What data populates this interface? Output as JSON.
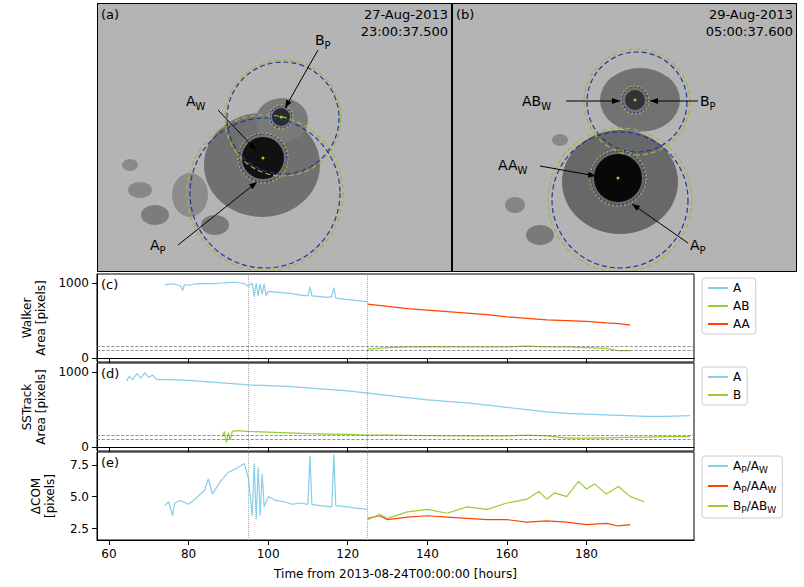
{
  "images": [
    {
      "panel": "(a)",
      "date": "27-Aug-2013",
      "time": "23:00:37.500",
      "labels": [
        [
          "A",
          {
            "sub": "W"
          }
        ],
        [
          "B",
          {
            "sub": "P"
          }
        ],
        [
          "A",
          {
            "sub": "P"
          }
        ]
      ]
    },
    {
      "panel": "(b)",
      "date": "29-Aug-2013",
      "time": "05:00:37.600",
      "labels": [
        [
          "AB",
          {
            "sub": "W"
          }
        ],
        [
          "B",
          {
            "sub": "P"
          }
        ],
        [
          "AA",
          {
            "sub": "W"
          }
        ],
        [
          "A",
          {
            "sub": "P"
          }
        ]
      ]
    }
  ],
  "chart_data": [
    {
      "type": "line",
      "panel": "(c)",
      "ylabel": "Walker Area [pixels]",
      "xlim": [
        57,
        207
      ],
      "xticks": [
        60,
        80,
        100,
        120,
        140,
        160,
        180
      ],
      "ylim": [
        -50,
        1120
      ],
      "yticks": [
        0,
        1000
      ],
      "grid": false,
      "legend": "right",
      "tick_labels": "y",
      "vlines": [
        95,
        125
      ],
      "hlines": [
        110,
        160
      ],
      "series": [
        {
          "name": [
            "A"
          ],
          "color": "#87ceeb",
          "x": [
            74,
            76,
            78,
            78.5,
            79,
            80,
            82,
            84,
            86,
            88,
            90,
            92,
            94,
            95,
            96,
            96.5,
            97,
            97.5,
            98,
            98.5,
            99,
            99.5,
            100,
            102,
            104,
            106,
            108,
            110,
            110.5,
            111,
            113,
            115,
            116,
            116.5,
            117,
            120,
            122,
            125
          ],
          "values": [
            980,
            990,
            960,
            900,
            980,
            970,
            990,
            995,
            990,
            1000,
            1005,
            1010,
            990,
            960,
            1000,
            820,
            1000,
            830,
            990,
            850,
            990,
            830,
            890,
            880,
            870,
            860,
            840,
            830,
            950,
            830,
            820,
            810,
            820,
            940,
            800,
            780,
            770,
            750
          ]
        },
        {
          "name": [
            "AB"
          ],
          "color": "#9acd32",
          "x": [
            125,
            130,
            135,
            140,
            150,
            160,
            165,
            170,
            175,
            180,
            185,
            188,
            191
          ],
          "values": [
            120,
            140,
            150,
            155,
            150,
            150,
            160,
            150,
            150,
            140,
            130,
            100,
            100
          ]
        },
        {
          "name": [
            "AA"
          ],
          "color": "#ff4500",
          "x": [
            125,
            130,
            135,
            140,
            145,
            150,
            155,
            160,
            165,
            170,
            175,
            180,
            185,
            188,
            191
          ],
          "values": [
            720,
            690,
            660,
            640,
            620,
            600,
            580,
            550,
            530,
            510,
            500,
            490,
            470,
            460,
            440
          ]
        }
      ]
    },
    {
      "type": "line",
      "panel": "(d)",
      "ylabel": "SSTrack Area [pixels]",
      "xlim": [
        57,
        207
      ],
      "xticks": [
        60,
        80,
        100,
        120,
        140,
        160,
        180
      ],
      "ylim": [
        -50,
        1120
      ],
      "yticks": [
        0,
        1000
      ],
      "grid": false,
      "legend": "right",
      "tick_labels": "y",
      "vlines": [
        95,
        125
      ],
      "hlines": [
        110,
        160
      ],
      "series": [
        {
          "name": [
            "A"
          ],
          "color": "#87ceeb",
          "x": [
            64.5,
            65,
            66,
            67,
            68,
            69,
            70,
            71,
            72,
            75,
            80,
            85,
            90,
            95,
            100,
            105,
            110,
            115,
            120,
            125,
            130,
            135,
            140,
            145,
            150,
            155,
            160,
            165,
            170,
            175,
            180,
            185,
            190,
            195,
            200,
            206
          ],
          "values": [
            880,
            940,
            900,
            980,
            920,
            990,
            930,
            960,
            900,
            900,
            890,
            870,
            850,
            830,
            820,
            810,
            790,
            770,
            750,
            720,
            690,
            660,
            630,
            610,
            590,
            560,
            530,
            500,
            470,
            450,
            440,
            430,
            420,
            410,
            410,
            420
          ]
        },
        {
          "name": [
            "B"
          ],
          "color": "#9acd32",
          "x": [
            88.5,
            89,
            89.5,
            90,
            90.5,
            91,
            92,
            95,
            100,
            105,
            110,
            115,
            120,
            125,
            130,
            140,
            150,
            160,
            165,
            170,
            175,
            180,
            185,
            190,
            195,
            200,
            206
          ],
          "values": [
            140,
            210,
            60,
            190,
            100,
            210,
            220,
            210,
            200,
            190,
            180,
            175,
            170,
            160,
            160,
            155,
            150,
            150,
            160,
            150,
            120,
            120,
            125,
            130,
            135,
            140,
            140
          ]
        }
      ]
    },
    {
      "type": "line",
      "panel": "(e)",
      "ylabel": "ΔCOM [pixels]",
      "xlabel": "Time from 2013-08-24T00:00:00 [hours]",
      "xlim": [
        57,
        207
      ],
      "xticks": [
        60,
        80,
        100,
        120,
        140,
        160,
        180
      ],
      "ylim": [
        1.6,
        8.5
      ],
      "yticks": [
        {
          "value": 2.5,
          "label": "2.5"
        },
        {
          "value": 5,
          "label": "5.0"
        },
        {
          "value": 7.5,
          "label": "7.5"
        }
      ],
      "grid": false,
      "legend": "right",
      "vlines": [
        95,
        125
      ],
      "series": [
        {
          "name": [
            "A",
            {
              "sub": "P"
            },
            "/A",
            {
              "sub": "W"
            }
          ],
          "color": "#87ceeb",
          "x": [
            74,
            75,
            76,
            76.5,
            78,
            80,
            82,
            84,
            85,
            86,
            88,
            90,
            92,
            94,
            95,
            96,
            96.5,
            97,
            97.5,
            98,
            98.5,
            99,
            100,
            102,
            104,
            106,
            108,
            110,
            110.5,
            111,
            113,
            116,
            116.5,
            117,
            120,
            122,
            125
          ],
          "values": [
            4.3,
            4.6,
            3.5,
            4.5,
            4.7,
            4.4,
            4.9,
            5.5,
            6.4,
            5.2,
            6.2,
            6.9,
            7.2,
            7.6,
            6.5,
            3.5,
            7.6,
            3.2,
            7.3,
            3.5,
            6.8,
            4.2,
            5.0,
            4.7,
            4.6,
            4.4,
            4.5,
            4.4,
            8.2,
            4.4,
            4.3,
            4.2,
            8.3,
            4.3,
            4.2,
            4.1,
            4.0
          ]
        },
        {
          "name": [
            "A",
            {
              "sub": "P"
            },
            "/AA",
            {
              "sub": "W"
            }
          ],
          "color": "#ff4500",
          "x": [
            125,
            128,
            130,
            135,
            140,
            145,
            150,
            155,
            160,
            165,
            170,
            175,
            180,
            185,
            188,
            191
          ],
          "values": [
            3.3,
            3.5,
            3.2,
            3.4,
            3.5,
            3.4,
            3.3,
            3.2,
            3.2,
            3.0,
            3.1,
            3.0,
            2.8,
            2.9,
            2.7,
            2.8
          ]
        },
        {
          "name": [
            "B",
            {
              "sub": "P"
            },
            "/AB",
            {
              "sub": "W"
            }
          ],
          "color": "#9acd32",
          "x": [
            125,
            128,
            130,
            135,
            140,
            145,
            150,
            155,
            160,
            165,
            168,
            170,
            172,
            175,
            178,
            180,
            182,
            185,
            188,
            191,
            194.5
          ],
          "values": [
            3.2,
            3.6,
            3.3,
            3.8,
            4.0,
            3.7,
            4.2,
            4.0,
            4.5,
            4.8,
            5.4,
            4.8,
            5.3,
            5.0,
            6.2,
            5.6,
            6.0,
            5.2,
            5.8,
            5.0,
            4.6
          ]
        }
      ]
    }
  ]
}
